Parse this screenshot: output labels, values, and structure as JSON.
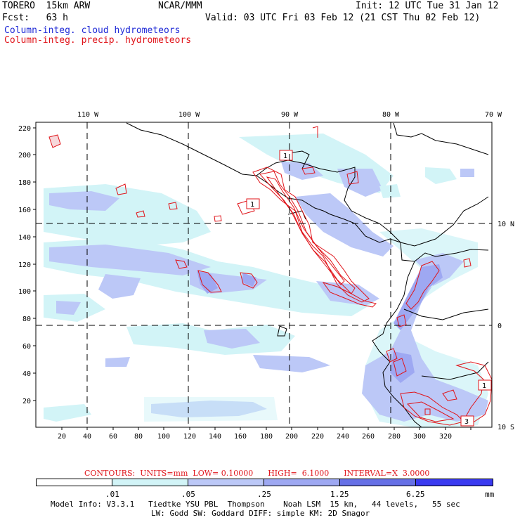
{
  "header": {
    "model": "TORERO  15km ARW",
    "org": "NCAR/MMM",
    "init": "Init: 12 UTC Tue 31 Jan 12",
    "fcst": "Fcst:   63 h",
    "valid": "Valid: 03 UTC Fri 03 Feb 12 (21 CST Thu 02 Feb 12)",
    "legend_blue": "Column-integ. cloud hydrometeors",
    "legend_red": "Column-integ. precip. hydrometeors"
  },
  "axes": {
    "top_lon_labels": [
      "110 W",
      "100 W",
      "90 W",
      "80 W",
      "70 W"
    ],
    "right_lat_labels": [
      "10 N",
      "0",
      "10 S"
    ],
    "left_y_ticks": [
      "220",
      "200",
      "180",
      "160",
      "140",
      "120",
      "100",
      "80",
      "60",
      "40",
      "20"
    ],
    "bottom_x_ticks": [
      "20",
      "40",
      "60",
      "80",
      "100",
      "120",
      "140",
      "160",
      "180",
      "200",
      "220",
      "240",
      "260",
      "280",
      "300",
      "320"
    ]
  },
  "contour_labels": [
    "1",
    "1",
    "1",
    "3"
  ],
  "contours_info": "CONTOURS:  UNITS=mm  LOW= 0.10000      HIGH=  6.1000      INTERVAL=X  3.0000",
  "colorbar": {
    "labels": [
      ".01",
      ".05",
      ".25",
      "1.25",
      "6.25",
      "mm"
    ],
    "colors": [
      "#ffffff",
      "#d2f4f7",
      "#bcc8f7",
      "#9ea8f2",
      "#6670e6",
      "#3a3af0"
    ]
  },
  "footer": {
    "line1": "Model Info: V3.3.1   Tiedtke YSU PBL  Thompson    Noah LSM  15 km,   44 levels,   55 sec",
    "line2": "LW: Godd SW: Goddard DIFF: simple KM: 2D Smagor"
  }
}
